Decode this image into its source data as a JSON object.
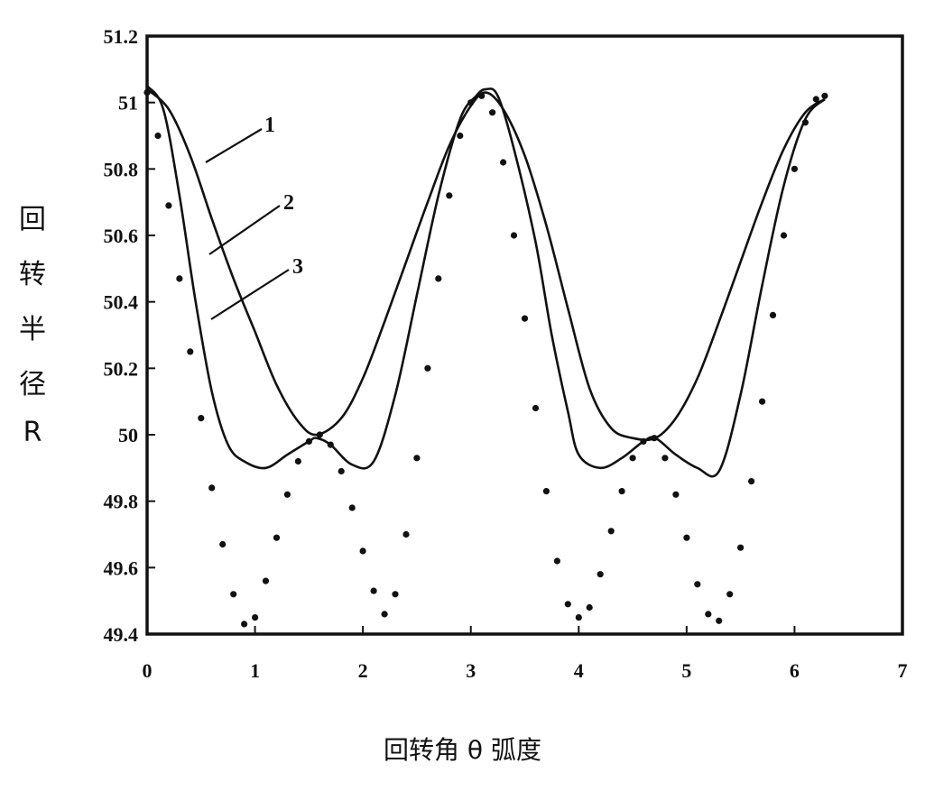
{
  "chart_data": {
    "type": "line",
    "title": "",
    "xlabel": "回转角 θ 弧度",
    "ylabel": "回转半径R",
    "xlim": [
      0,
      7
    ],
    "ylim": [
      49.4,
      51.2
    ],
    "x_ticks": [
      "0",
      "1",
      "2",
      "3",
      "4",
      "5",
      "6",
      "7"
    ],
    "y_ticks": [
      "49.4",
      "49.6",
      "49.8",
      "50",
      "50.2",
      "50.4",
      "50.6",
      "50.8",
      "51",
      "51.2"
    ],
    "grid": false,
    "legend": "inline-leaders",
    "series": [
      {
        "name": "1",
        "style": "solid",
        "x": [
          0,
          0.2,
          0.4,
          0.6,
          0.8,
          1.0,
          1.2,
          1.4,
          1.57,
          1.8,
          2.0,
          2.2,
          2.4,
          2.6,
          2.8,
          3.0,
          3.14,
          3.3,
          3.5,
          3.7,
          3.9,
          4.1,
          4.3,
          4.5,
          4.71,
          4.9,
          5.1,
          5.3,
          5.5,
          5.7,
          5.9,
          6.1,
          6.28
        ],
        "y": [
          51.04,
          50.98,
          50.84,
          50.65,
          50.47,
          50.31,
          50.15,
          50.04,
          50.0,
          50.05,
          50.17,
          50.34,
          50.52,
          50.7,
          50.87,
          50.99,
          51.03,
          50.98,
          50.84,
          50.63,
          50.38,
          50.14,
          50.02,
          49.99,
          49.99,
          50.05,
          50.17,
          50.34,
          50.52,
          50.7,
          50.86,
          50.97,
          51.01
        ]
      },
      {
        "name": "2",
        "style": "solid",
        "x": [
          0,
          0.15,
          0.3,
          0.45,
          0.6,
          0.75,
          0.9,
          1.1,
          1.3,
          1.5,
          1.57,
          1.7,
          1.9,
          2.1,
          2.3,
          2.5,
          2.7,
          2.9,
          3.05,
          3.14,
          3.25,
          3.4,
          3.6,
          3.75,
          3.9,
          4.0,
          4.2,
          4.4,
          4.6,
          4.71,
          4.9,
          5.1,
          5.3,
          5.5,
          5.7,
          5.9,
          6.1,
          6.28
        ],
        "y": [
          51.05,
          50.98,
          50.72,
          50.4,
          50.13,
          49.97,
          49.92,
          49.9,
          49.94,
          49.98,
          49.99,
          49.97,
          49.91,
          49.92,
          50.12,
          50.42,
          50.72,
          50.95,
          51.02,
          51.04,
          51.02,
          50.86,
          50.58,
          50.3,
          50.07,
          49.94,
          49.9,
          49.93,
          49.98,
          49.99,
          49.94,
          49.9,
          49.89,
          50.12,
          50.45,
          50.75,
          50.95,
          51.01
        ]
      },
      {
        "name": "3",
        "style": "dotted",
        "x": [
          0,
          0.1,
          0.2,
          0.3,
          0.4,
          0.5,
          0.6,
          0.7,
          0.8,
          0.9,
          1.0,
          1.1,
          1.2,
          1.3,
          1.4,
          1.5,
          1.6,
          1.7,
          1.8,
          1.9,
          2.0,
          2.1,
          2.2,
          2.3,
          2.4,
          2.5,
          2.6,
          2.7,
          2.8,
          2.9,
          3.0,
          3.1,
          3.2,
          3.3,
          3.4,
          3.5,
          3.6,
          3.7,
          3.8,
          3.9,
          4.0,
          4.1,
          4.2,
          4.3,
          4.4,
          4.5,
          4.6,
          4.7,
          4.8,
          4.9,
          5.0,
          5.1,
          5.2,
          5.3,
          5.4,
          5.5,
          5.6,
          5.7,
          5.8,
          5.9,
          6.0,
          6.1,
          6.2,
          6.28
        ],
        "y": [
          51.03,
          50.9,
          50.69,
          50.47,
          50.25,
          50.05,
          49.84,
          49.67,
          49.52,
          49.43,
          49.45,
          49.56,
          49.69,
          49.82,
          49.92,
          49.98,
          50.0,
          49.97,
          49.89,
          49.78,
          49.65,
          49.53,
          49.46,
          49.52,
          49.7,
          49.93,
          50.2,
          50.47,
          50.72,
          50.9,
          51.0,
          51.02,
          50.97,
          50.82,
          50.6,
          50.35,
          50.08,
          49.83,
          49.62,
          49.49,
          49.45,
          49.48,
          49.58,
          49.71,
          49.83,
          49.93,
          49.98,
          49.99,
          49.93,
          49.82,
          49.69,
          49.55,
          49.46,
          49.44,
          49.52,
          49.66,
          49.86,
          50.1,
          50.36,
          50.6,
          50.8,
          50.94,
          51.01,
          51.02
        ]
      }
    ]
  }
}
